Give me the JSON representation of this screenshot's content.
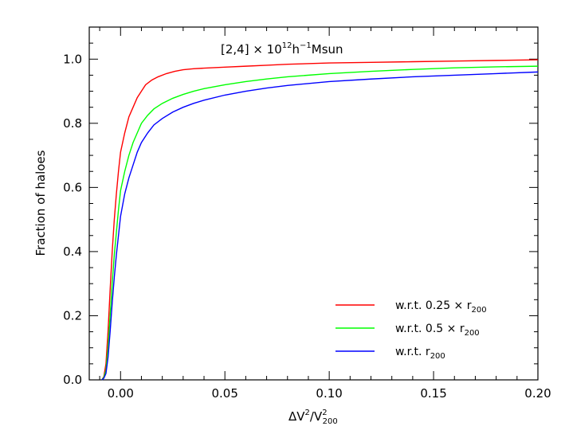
{
  "chart_data": {
    "type": "line",
    "title": "",
    "annotation": {
      "prefix": "[2,4] × 10",
      "exp": "12",
      "mid": "h",
      "exp2": "−1",
      "suffix": "Msun"
    },
    "xlabel": {
      "main": "ΔV",
      "sup": "2",
      "slash": "/V",
      "sub": "200",
      "sup2": "2"
    },
    "ylabel": "Fraction of haloes",
    "xlim": [
      -0.015,
      0.2
    ],
    "ylim": [
      0.0,
      1.1
    ],
    "xticks": [
      0.0,
      0.05,
      0.1,
      0.15,
      0.2
    ],
    "xtick_labels": [
      "0.00",
      "0.05",
      "0.10",
      "0.15",
      "0.20"
    ],
    "yticks": [
      0.0,
      0.2,
      0.4,
      0.6,
      0.8,
      1.0
    ],
    "ytick_labels": [
      "0.0",
      "0.2",
      "0.4",
      "0.6",
      "0.8",
      "1.0"
    ],
    "grid": false,
    "legend_position": "bottom-right",
    "series": [
      {
        "name": "w.r.t. 0.25 × r",
        "name_sub": "200",
        "color": "#ff0000",
        "x": [
          -0.009,
          -0.008,
          -0.007,
          -0.006,
          -0.005,
          -0.004,
          -0.003,
          -0.002,
          -0.001,
          0.0,
          0.002,
          0.004,
          0.006,
          0.008,
          0.01,
          0.012,
          0.015,
          0.018,
          0.022,
          0.026,
          0.03,
          0.035,
          0.04,
          0.05,
          0.06,
          0.07,
          0.08,
          0.1,
          0.12,
          0.14,
          0.16,
          0.18,
          0.2
        ],
        "y": [
          0.0,
          0.01,
          0.05,
          0.15,
          0.28,
          0.4,
          0.5,
          0.58,
          0.65,
          0.71,
          0.77,
          0.82,
          0.85,
          0.88,
          0.9,
          0.92,
          0.935,
          0.945,
          0.955,
          0.962,
          0.967,
          0.97,
          0.972,
          0.975,
          0.978,
          0.981,
          0.984,
          0.988,
          0.99,
          0.992,
          0.994,
          0.996,
          0.998
        ]
      },
      {
        "name": "w.r.t. 0.5 × r",
        "name_sub": "200",
        "color": "#00ff00",
        "x": [
          -0.009,
          -0.008,
          -0.007,
          -0.006,
          -0.005,
          -0.004,
          -0.003,
          -0.002,
          -0.001,
          0.0,
          0.002,
          0.004,
          0.006,
          0.008,
          0.01,
          0.013,
          0.016,
          0.02,
          0.025,
          0.03,
          0.035,
          0.04,
          0.05,
          0.06,
          0.07,
          0.08,
          0.1,
          0.12,
          0.14,
          0.16,
          0.18,
          0.2
        ],
        "y": [
          0.0,
          0.008,
          0.03,
          0.1,
          0.2,
          0.3,
          0.39,
          0.46,
          0.53,
          0.59,
          0.65,
          0.7,
          0.74,
          0.77,
          0.8,
          0.825,
          0.845,
          0.862,
          0.878,
          0.89,
          0.9,
          0.908,
          0.92,
          0.93,
          0.938,
          0.945,
          0.955,
          0.962,
          0.968,
          0.973,
          0.976,
          0.978
        ]
      },
      {
        "name": "w.r.t. r",
        "name_sub": "200",
        "color": "#0000ff",
        "x": [
          -0.009,
          -0.008,
          -0.007,
          -0.006,
          -0.005,
          -0.004,
          -0.003,
          -0.002,
          -0.001,
          0.0,
          0.002,
          0.004,
          0.006,
          0.008,
          0.01,
          0.013,
          0.016,
          0.02,
          0.025,
          0.03,
          0.035,
          0.04,
          0.05,
          0.06,
          0.07,
          0.08,
          0.1,
          0.12,
          0.14,
          0.16,
          0.18,
          0.2
        ],
        "y": [
          0.0,
          0.005,
          0.02,
          0.07,
          0.15,
          0.24,
          0.32,
          0.39,
          0.45,
          0.51,
          0.58,
          0.63,
          0.67,
          0.71,
          0.74,
          0.77,
          0.795,
          0.815,
          0.835,
          0.85,
          0.862,
          0.872,
          0.888,
          0.9,
          0.91,
          0.918,
          0.93,
          0.938,
          0.945,
          0.95,
          0.955,
          0.96
        ]
      }
    ]
  }
}
